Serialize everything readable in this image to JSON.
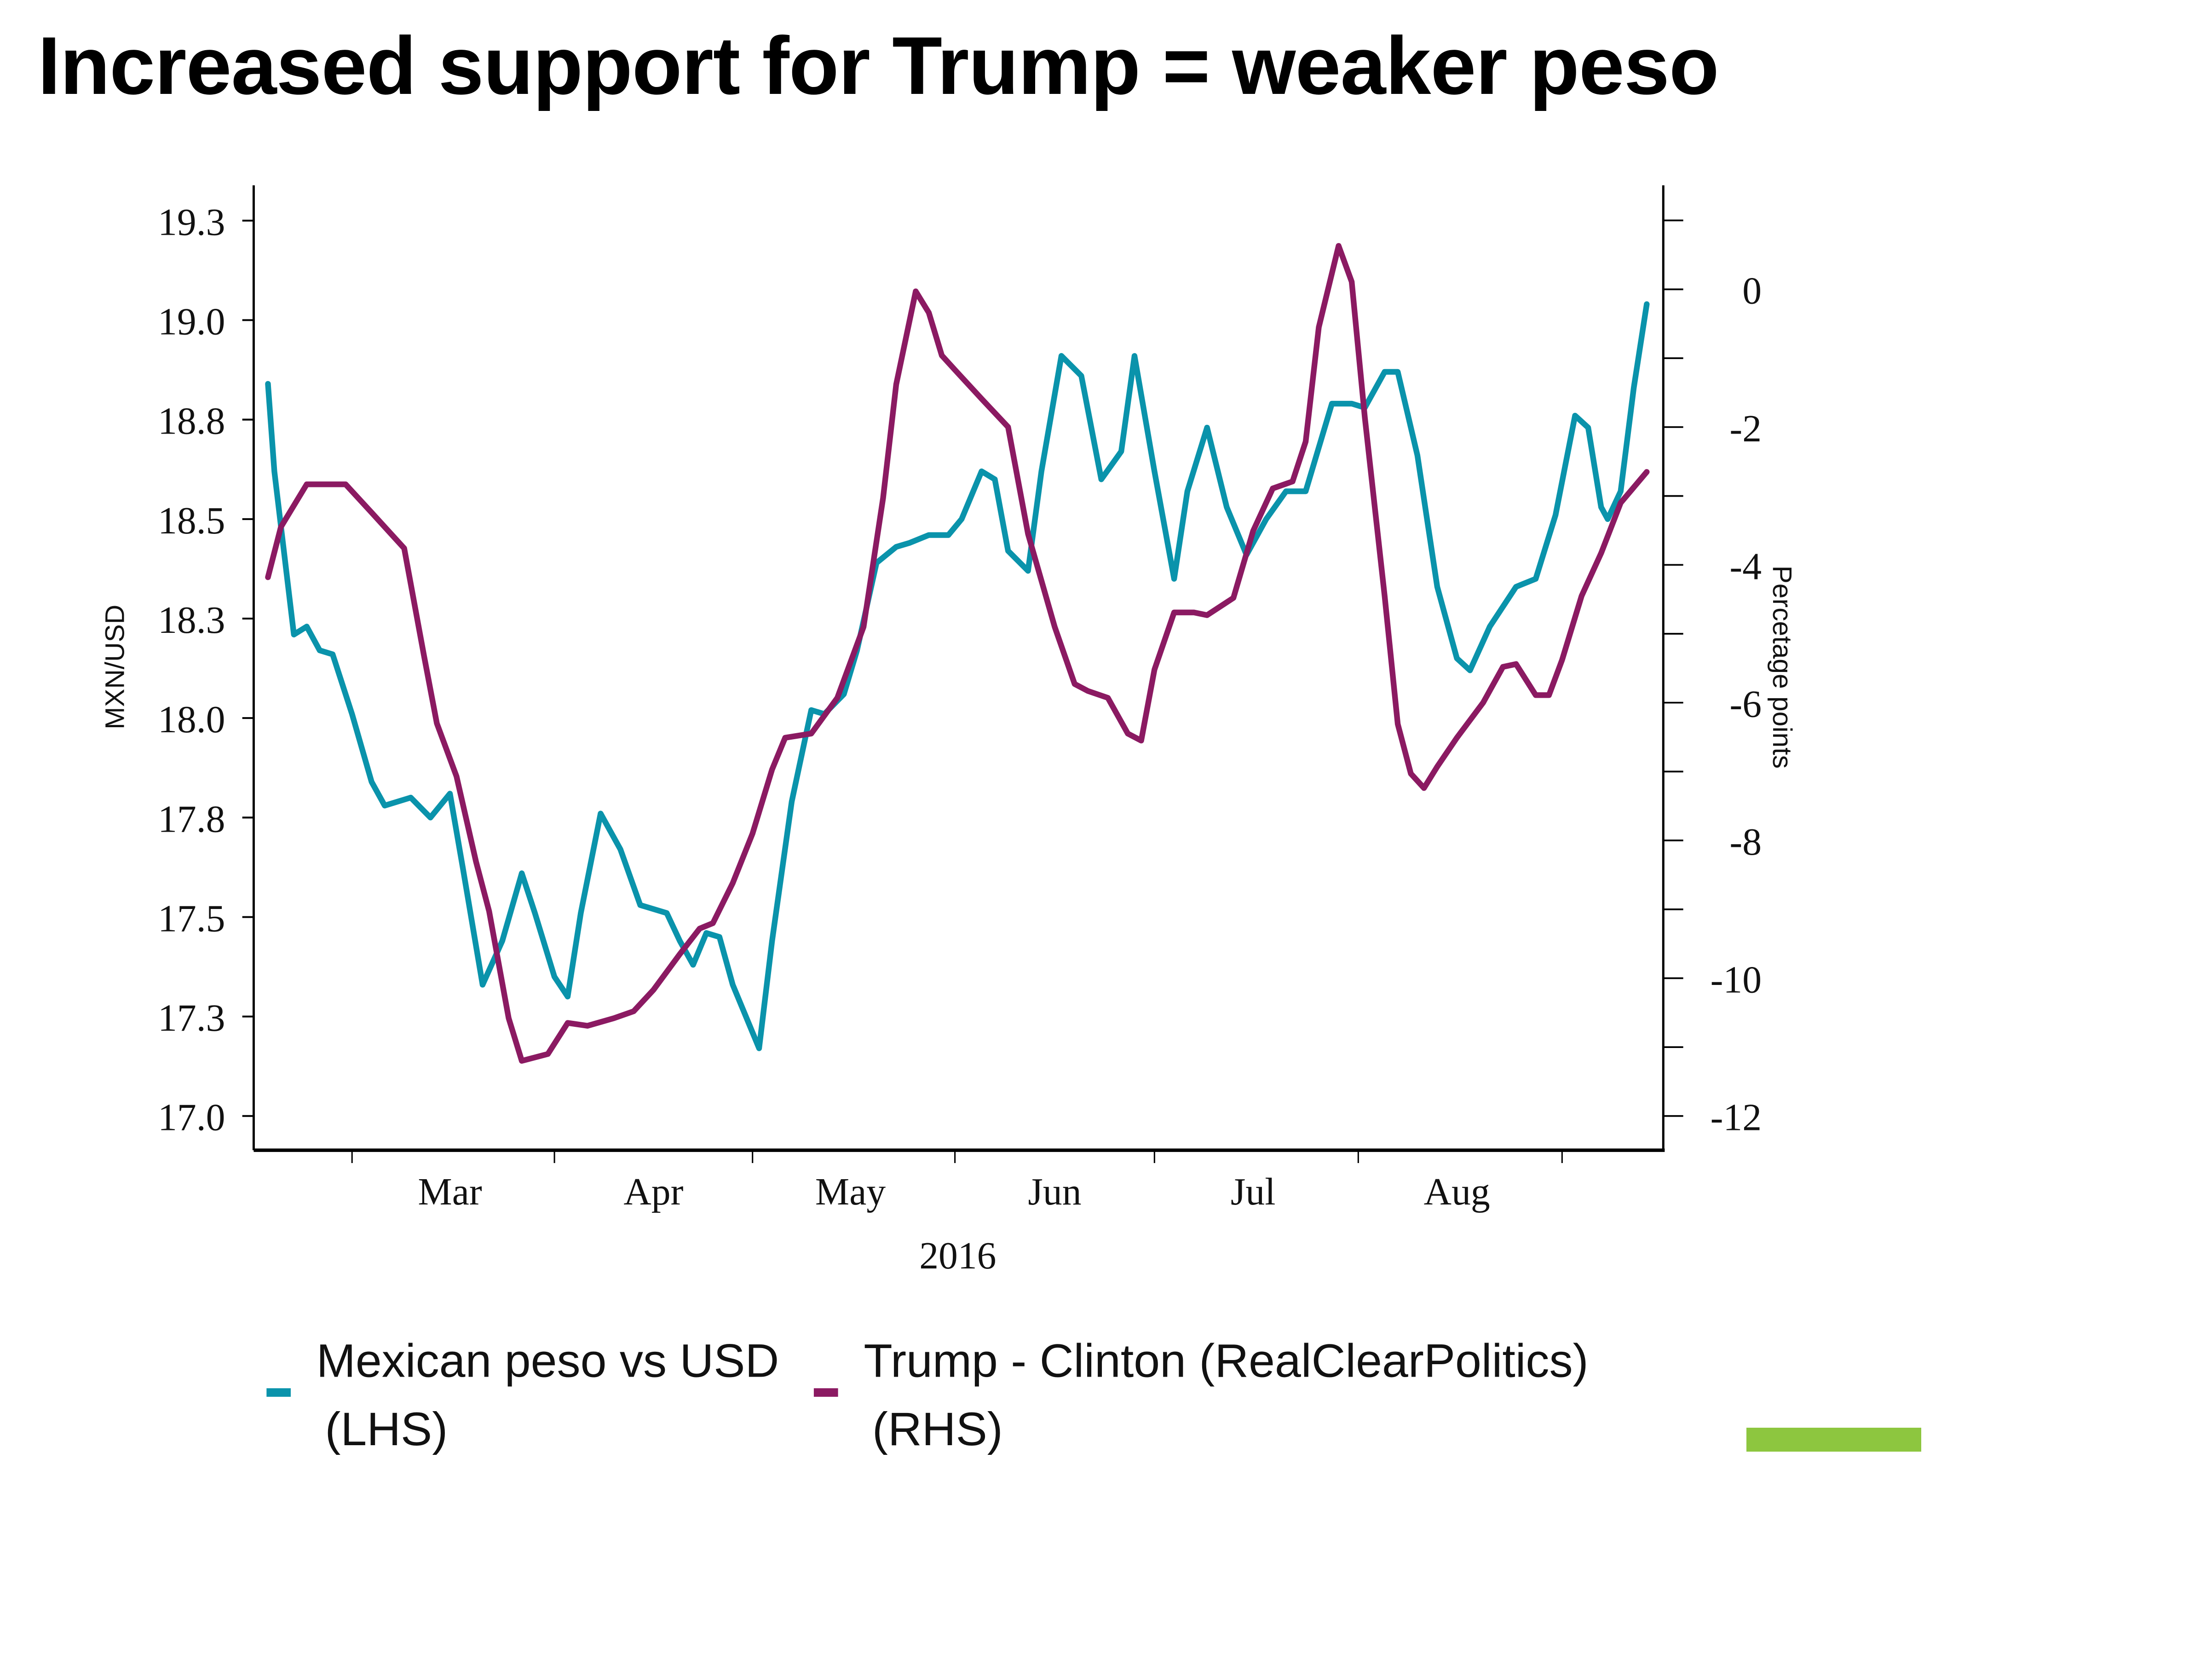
{
  "title": "Increased support for Trump = weaker peso",
  "accent_bar_color": "#8dc63f",
  "chart_data": {
    "type": "line",
    "title": "Increased support for Trump = weaker peso",
    "xlabel": "2016",
    "x_unit": "day of year 2016 (Jan 1 = 1)",
    "x_ticks": [
      {
        "doy": 61,
        "label": ""
      },
      {
        "doy": 92,
        "label": ""
      },
      {
        "doy": 122,
        "label": ""
      },
      {
        "doy": 153,
        "label": ""
      },
      {
        "doy": 183,
        "label": ""
      },
      {
        "doy": 214,
        "label": ""
      },
      {
        "doy": 245,
        "label": ""
      }
    ],
    "x_month_labels": [
      {
        "doy": 76,
        "label": "Mar"
      },
      {
        "doy": 107,
        "label": "Apr"
      },
      {
        "doy": 137,
        "label": "May"
      },
      {
        "doy": 168,
        "label": "Jun"
      },
      {
        "doy": 198,
        "label": "Jul"
      },
      {
        "doy": 229,
        "label": "Aug"
      }
    ],
    "xlim": [
      48,
      259
    ],
    "left_axis": {
      "label": "MXN/USD",
      "ylim": [
        17.0,
        19.33
      ],
      "ticks": [
        {
          "value": 19.25,
          "label": "19.3"
        },
        {
          "value": 19.0,
          "label": "19.0"
        },
        {
          "value": 18.75,
          "label": "18.8"
        },
        {
          "value": 18.5,
          "label": "18.5"
        },
        {
          "value": 18.25,
          "label": "18.3"
        },
        {
          "value": 18.0,
          "label": "18.0"
        },
        {
          "value": 17.75,
          "label": "17.8"
        },
        {
          "value": 17.5,
          "label": "17.5"
        },
        {
          "value": 17.25,
          "label": "17.3"
        },
        {
          "value": 17.0,
          "label": "17.0"
        }
      ]
    },
    "right_axis": {
      "label": "Percetage points",
      "ylim": [
        -12,
        1.46
      ],
      "major_ticks": [
        {
          "value": 0,
          "label": "0"
        },
        {
          "value": -2,
          "label": "-2"
        },
        {
          "value": -4,
          "label": "-4"
        },
        {
          "value": -6,
          "label": "-6"
        },
        {
          "value": -8,
          "label": "-8"
        },
        {
          "value": -10,
          "label": "-10"
        },
        {
          "value": -12,
          "label": "-12"
        }
      ],
      "minor_ticks": [
        1,
        -1,
        -3,
        -5,
        -7,
        -9,
        -11
      ]
    },
    "grid": false,
    "legend_position": "bottom",
    "series": [
      {
        "name": "Mexican peso vs USD",
        "name_line2": "(LHS)",
        "axis": "left",
        "color": "#0a93ab",
        "points": [
          [
            48,
            18.84
          ],
          [
            49,
            18.62
          ],
          [
            52,
            18.21
          ],
          [
            54,
            18.23
          ],
          [
            56,
            18.17
          ],
          [
            58,
            18.16
          ],
          [
            61,
            18.01
          ],
          [
            64,
            17.84
          ],
          [
            66,
            17.78
          ],
          [
            70,
            17.8
          ],
          [
            73,
            17.75
          ],
          [
            76,
            17.81
          ],
          [
            78,
            17.62
          ],
          [
            81,
            17.33
          ],
          [
            84,
            17.44
          ],
          [
            87,
            17.61
          ],
          [
            89,
            17.51
          ],
          [
            92,
            17.35
          ],
          [
            94,
            17.3
          ],
          [
            96,
            17.51
          ],
          [
            99,
            17.76
          ],
          [
            102,
            17.67
          ],
          [
            105,
            17.53
          ],
          [
            109,
            17.51
          ],
          [
            111,
            17.44
          ],
          [
            113,
            17.38
          ],
          [
            115,
            17.46
          ],
          [
            117,
            17.45
          ],
          [
            119,
            17.33
          ],
          [
            123,
            17.17
          ],
          [
            125,
            17.44
          ],
          [
            128,
            17.79
          ],
          [
            131,
            18.02
          ],
          [
            133,
            18.01
          ],
          [
            136,
            18.06
          ],
          [
            138,
            18.17
          ],
          [
            141,
            18.39
          ],
          [
            144,
            18.43
          ],
          [
            146,
            18.44
          ],
          [
            149,
            18.46
          ],
          [
            152,
            18.46
          ],
          [
            154,
            18.5
          ],
          [
            157,
            18.62
          ],
          [
            159,
            18.6
          ],
          [
            161,
            18.42
          ],
          [
            164,
            18.37
          ],
          [
            166,
            18.62
          ],
          [
            169,
            18.91
          ],
          [
            172,
            18.86
          ],
          [
            175,
            18.6
          ],
          [
            178,
            18.67
          ],
          [
            180,
            18.91
          ],
          [
            183,
            18.62
          ],
          [
            186,
            18.35
          ],
          [
            188,
            18.57
          ],
          [
            191,
            18.73
          ],
          [
            194,
            18.53
          ],
          [
            197,
            18.41
          ],
          [
            200,
            18.5
          ],
          [
            203,
            18.57
          ],
          [
            206,
            18.57
          ],
          [
            210,
            18.79
          ],
          [
            213,
            18.79
          ],
          [
            215,
            18.78
          ],
          [
            218,
            18.87
          ],
          [
            220,
            18.87
          ],
          [
            223,
            18.66
          ],
          [
            226,
            18.33
          ],
          [
            229,
            18.15
          ],
          [
            231,
            18.12
          ],
          [
            234,
            18.23
          ],
          [
            238,
            18.33
          ],
          [
            241,
            18.35
          ],
          [
            244,
            18.51
          ],
          [
            247,
            18.76
          ],
          [
            249,
            18.73
          ],
          [
            251,
            18.53
          ],
          [
            252,
            18.5
          ],
          [
            254,
            18.57
          ],
          [
            256,
            18.83
          ],
          [
            258,
            19.04
          ]
        ]
      },
      {
        "name": "Trump - Clinton (RealClearPolitics)",
        "name_line2": "(RHS)",
        "axis": "right",
        "color": "#8b1a62",
        "points": [
          [
            48,
            -4.18
          ],
          [
            50,
            -3.45
          ],
          [
            54,
            -2.83
          ],
          [
            60,
            -2.83
          ],
          [
            64,
            -3.24
          ],
          [
            69,
            -3.76
          ],
          [
            72,
            -5.31
          ],
          [
            74,
            -6.3
          ],
          [
            77,
            -7.07
          ],
          [
            80,
            -8.31
          ],
          [
            82,
            -9.03
          ],
          [
            85,
            -10.58
          ],
          [
            87,
            -11.2
          ],
          [
            91,
            -11.1
          ],
          [
            94,
            -10.65
          ],
          [
            97,
            -10.69
          ],
          [
            101,
            -10.58
          ],
          [
            104,
            -10.48
          ],
          [
            107,
            -10.17
          ],
          [
            111,
            -9.65
          ],
          [
            114,
            -9.28
          ],
          [
            116,
            -9.2
          ],
          [
            119,
            -8.62
          ],
          [
            122,
            -7.9
          ],
          [
            125,
            -6.97
          ],
          [
            127,
            -6.51
          ],
          [
            131,
            -6.45
          ],
          [
            135,
            -5.93
          ],
          [
            139,
            -4.9
          ],
          [
            142,
            -3.03
          ],
          [
            144,
            -1.38
          ],
          [
            147,
            -0.03
          ],
          [
            149,
            -0.34
          ],
          [
            151,
            -0.96
          ],
          [
            153,
            -1.17
          ],
          [
            157,
            -1.59
          ],
          [
            161,
            -2.0
          ],
          [
            164,
            -3.55
          ],
          [
            168,
            -4.9
          ],
          [
            171,
            -5.73
          ],
          [
            173,
            -5.83
          ],
          [
            176,
            -5.93
          ],
          [
            179,
            -6.45
          ],
          [
            181,
            -6.55
          ],
          [
            183,
            -5.52
          ],
          [
            186,
            -4.69
          ],
          [
            189,
            -4.69
          ],
          [
            191,
            -4.73
          ],
          [
            195,
            -4.48
          ],
          [
            198,
            -3.51
          ],
          [
            201,
            -2.89
          ],
          [
            204,
            -2.79
          ],
          [
            206,
            -2.21
          ],
          [
            208,
            -0.55
          ],
          [
            211,
            0.63
          ],
          [
            213,
            0.11
          ],
          [
            215,
            -1.86
          ],
          [
            218,
            -4.45
          ],
          [
            220,
            -6.31
          ],
          [
            222,
            -7.03
          ],
          [
            224,
            -7.24
          ],
          [
            226,
            -6.93
          ],
          [
            229,
            -6.51
          ],
          [
            233,
            -6.0
          ],
          [
            236,
            -5.48
          ],
          [
            238,
            -5.44
          ],
          [
            241,
            -5.89
          ],
          [
            243,
            -5.89
          ],
          [
            245,
            -5.38
          ],
          [
            248,
            -4.45
          ],
          [
            251,
            -3.83
          ],
          [
            254,
            -3.1
          ],
          [
            258,
            -2.65
          ]
        ]
      }
    ]
  }
}
